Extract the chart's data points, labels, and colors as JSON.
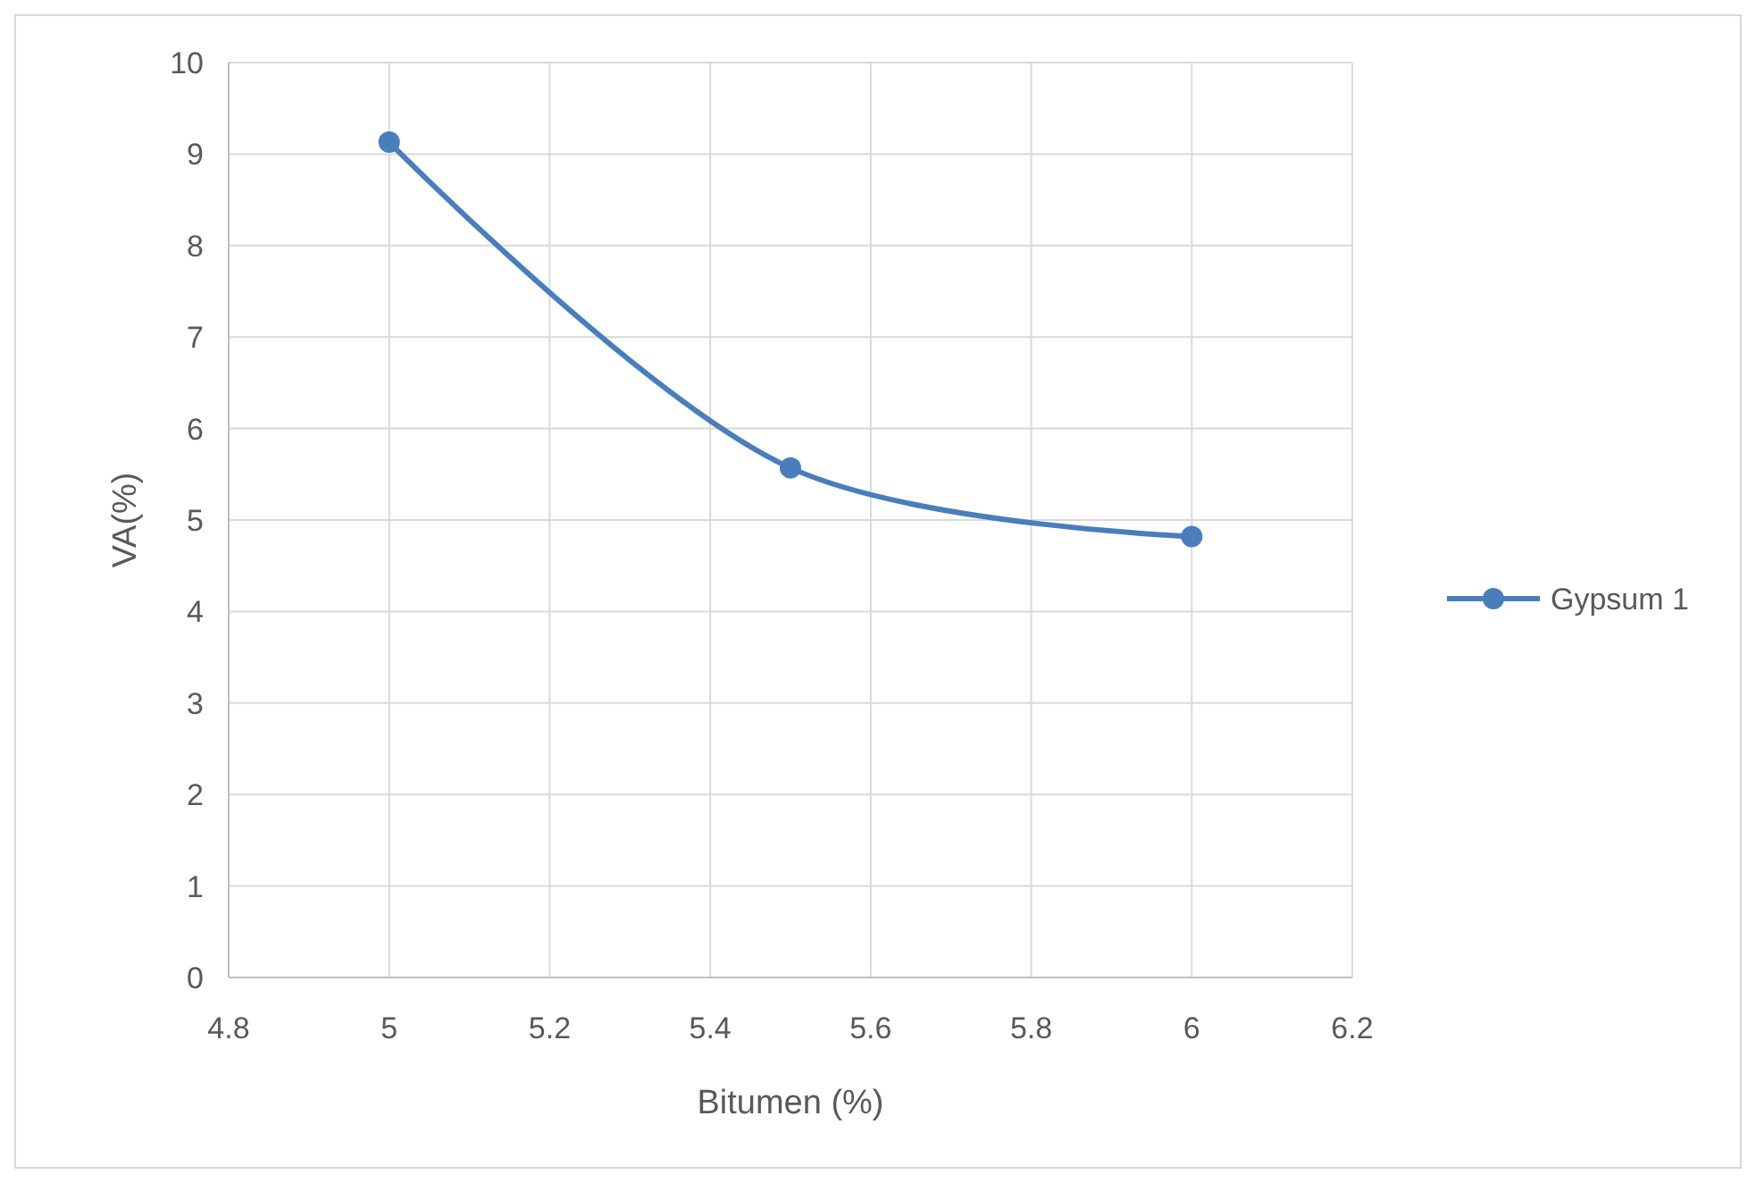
{
  "chart_data": {
    "type": "line",
    "xlabel": "Bitumen (%)",
    "ylabel": "VA(%)",
    "x": [
      5,
      5.5,
      6
    ],
    "series": [
      {
        "name": "Gypsum 1",
        "color": "#4a7ebb",
        "values": [
          9.13,
          5.57,
          4.82
        ]
      }
    ],
    "xlim": [
      4.8,
      6.2
    ],
    "xticks": [
      4.8,
      5,
      5.2,
      5.4,
      5.6,
      5.8,
      6,
      6.2
    ],
    "ylim": [
      0,
      10
    ],
    "yticks": [
      0,
      1,
      2,
      3,
      4,
      5,
      6,
      7,
      8,
      9,
      10
    ],
    "grid": true,
    "legend": "right",
    "marker": "circle",
    "line_style": "solid"
  }
}
